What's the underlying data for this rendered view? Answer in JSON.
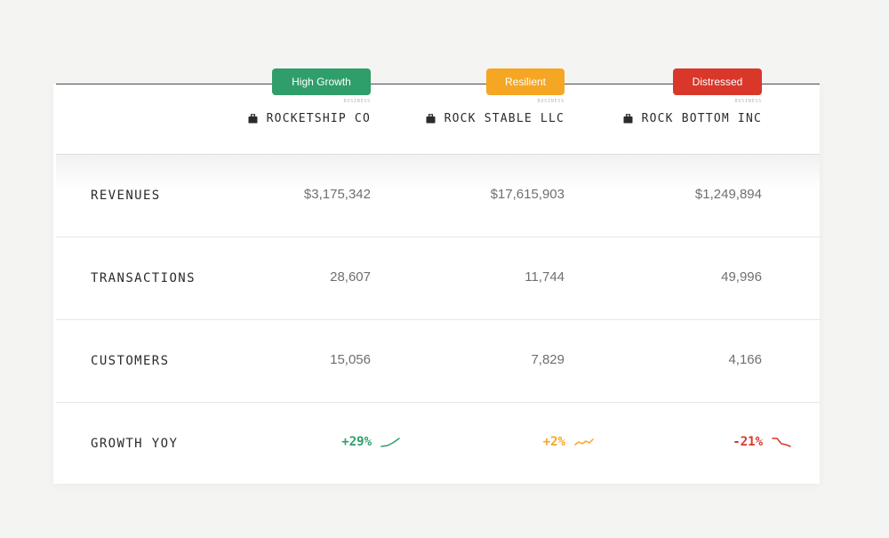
{
  "columns": [
    {
      "tag": "High Growth",
      "tag_color": "#2f9e6a",
      "caption": "BUSINESS",
      "name": "ROCKETSHIP CO",
      "icon": "briefcase-icon",
      "revenues": "$3,175,342",
      "transactions": "28,607",
      "customers": "15,056",
      "growth": "+29%",
      "growth_color": "#2f9e6a",
      "trend": "up"
    },
    {
      "tag": "Resilient",
      "tag_color": "#f5a623",
      "caption": "BUSINESS",
      "name": "ROCK STABLE LLC",
      "icon": "briefcase-icon",
      "revenues": "$17,615,903",
      "transactions": "11,744",
      "customers": "7,829",
      "growth": "+2%",
      "growth_color": "#f5a623",
      "trend": "flat"
    },
    {
      "tag": "Distressed",
      "tag_color": "#d9372a",
      "caption": "BUSINESS",
      "name": "ROCK BOTTOM INC",
      "icon": "briefcase-icon",
      "revenues": "$1,249,894",
      "transactions": "49,996",
      "customers": "4,166",
      "growth": "-21%",
      "growth_color": "#d9372a",
      "trend": "down"
    }
  ],
  "rows": {
    "revenues": "REVENUES",
    "transactions": "TRANSACTIONS",
    "customers": "CUSTOMERS",
    "growth": "GROWTH YOY"
  }
}
